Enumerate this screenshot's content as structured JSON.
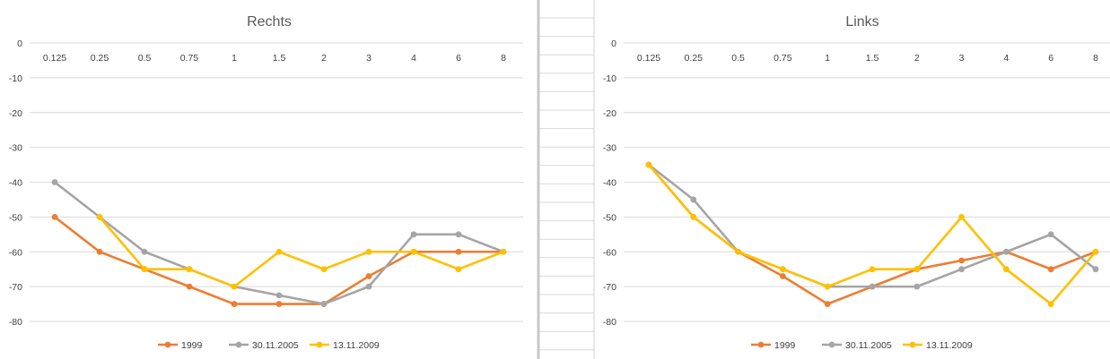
{
  "charts": [
    {
      "type": "line",
      "title": "Rechts",
      "categories": [
        "0.125",
        "0.25",
        "0.5",
        "0.75",
        "1",
        "1.5",
        "2",
        "3",
        "4",
        "6",
        "8"
      ],
      "ylim": [
        -80,
        0
      ],
      "yticks": [
        "0",
        "-10",
        "-20",
        "-30",
        "-40",
        "-50",
        "-60",
        "-70",
        "-80"
      ],
      "grid": true,
      "legend_position": "bottom",
      "series": [
        {
          "name": "1999",
          "color": "#ed7d31",
          "values": [
            -50,
            -60,
            -65,
            -70,
            -75,
            -75,
            -75,
            -67,
            -60,
            -60,
            -60
          ]
        },
        {
          "name": "30.11.2005",
          "color": "#a5a5a5",
          "values": [
            -40,
            -50,
            -60,
            -65,
            -70,
            -72.5,
            -75,
            -70,
            -55,
            -55,
            -60
          ]
        },
        {
          "name": "13.11.2009",
          "color": "#ffc000",
          "values": [
            null,
            -50,
            -65,
            -65,
            -70,
            -60,
            -65,
            -60,
            -60,
            -65,
            -60
          ]
        }
      ]
    },
    {
      "type": "line",
      "title": "Links",
      "categories": [
        "0.125",
        "0.25",
        "0.5",
        "0.75",
        "1",
        "1.5",
        "2",
        "3",
        "4",
        "6",
        "8"
      ],
      "ylim": [
        -80,
        0
      ],
      "yticks": [
        "0",
        "-10",
        "-20",
        "-30",
        "-40",
        "-50",
        "-60",
        "-70",
        "-80"
      ],
      "grid": true,
      "legend_position": "bottom",
      "series": [
        {
          "name": "1999",
          "color": "#ed7d31",
          "values": [
            -35,
            -50,
            -60,
            -67,
            -75,
            -70,
            -65,
            -62.5,
            -60,
            -65,
            -60
          ]
        },
        {
          "name": "30.11.2005",
          "color": "#a5a5a5",
          "values": [
            -35,
            -45,
            -60,
            -65,
            -70,
            -70,
            -70,
            -65,
            -60,
            -55,
            -65
          ]
        },
        {
          "name": "13.11.2009",
          "color": "#ffc000",
          "values": [
            -35,
            -50,
            -60,
            -65,
            -70,
            -65,
            -65,
            -50,
            -65,
            -75,
            -60
          ]
        }
      ]
    }
  ]
}
